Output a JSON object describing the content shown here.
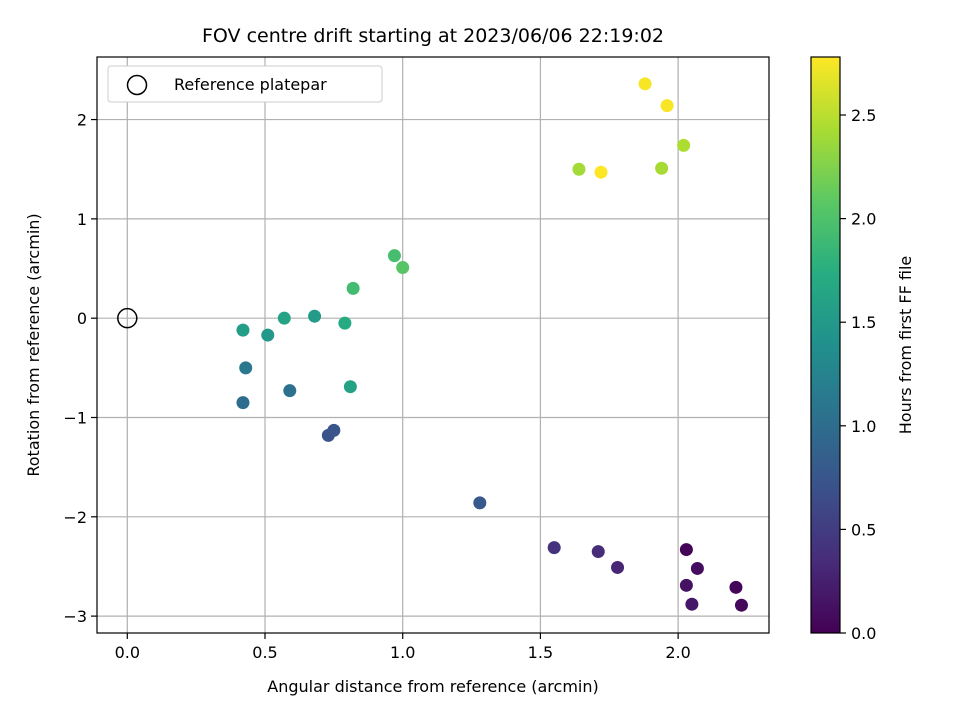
{
  "chart_data": {
    "type": "scatter",
    "title": "FOV centre drift starting at 2023/06/06 22:19:02",
    "xlabel": "Angular distance from reference (arcmin)",
    "ylabel": "Rotation from reference (arcmin)",
    "xlim": [
      -0.11,
      2.33
    ],
    "ylim": [
      -3.17,
      2.63
    ],
    "xticks": [
      0.0,
      0.5,
      1.0,
      1.5,
      2.0
    ],
    "xtick_labels": [
      "0.0",
      "0.5",
      "1.0",
      "1.5",
      "2.0"
    ],
    "yticks": [
      2,
      1,
      0,
      -1,
      -2,
      -3
    ],
    "ytick_labels": [
      "2",
      "1",
      "0",
      "−1",
      "−2",
      "−3"
    ],
    "grid": true,
    "legend": {
      "position": "top-left",
      "entries": [
        {
          "label": "Reference platepar",
          "marker": "open-circle",
          "color": "#000000"
        }
      ]
    },
    "reference_point": {
      "x": 0.0,
      "y": 0.0
    },
    "colorbar": {
      "label": "Hours from first FF file",
      "colormap": "viridis",
      "range": [
        0.0,
        2.78
      ],
      "ticks": [
        0.0,
        0.5,
        1.0,
        1.5,
        2.0,
        2.5
      ],
      "tick_labels": [
        "0.0",
        "0.5",
        "1.0",
        "1.5",
        "2.0",
        "2.5"
      ]
    },
    "points": [
      {
        "x": 2.03,
        "y": -2.33,
        "hours": 0.02
      },
      {
        "x": 2.21,
        "y": -2.71,
        "hours": 0.04
      },
      {
        "x": 2.23,
        "y": -2.89,
        "hours": 0.06
      },
      {
        "x": 2.07,
        "y": -2.52,
        "hours": 0.1
      },
      {
        "x": 2.03,
        "y": -2.69,
        "hours": 0.14
      },
      {
        "x": 2.05,
        "y": -2.88,
        "hours": 0.18
      },
      {
        "x": 1.78,
        "y": -2.51,
        "hours": 0.3
      },
      {
        "x": 1.71,
        "y": -2.35,
        "hours": 0.35
      },
      {
        "x": 1.55,
        "y": -2.31,
        "hours": 0.4
      },
      {
        "x": 1.28,
        "y": -1.86,
        "hours": 0.78
      },
      {
        "x": 0.73,
        "y": -1.18,
        "hours": 0.72
      },
      {
        "x": 0.75,
        "y": -1.13,
        "hours": 0.74
      },
      {
        "x": 0.42,
        "y": -0.85,
        "hours": 1.0
      },
      {
        "x": 0.59,
        "y": -0.73,
        "hours": 1.05
      },
      {
        "x": 0.43,
        "y": -0.5,
        "hours": 1.12
      },
      {
        "x": 0.81,
        "y": -0.69,
        "hours": 1.6
      },
      {
        "x": 0.51,
        "y": -0.17,
        "hours": 1.48
      },
      {
        "x": 0.42,
        "y": -0.12,
        "hours": 1.55
      },
      {
        "x": 0.57,
        "y": 0.0,
        "hours": 1.62
      },
      {
        "x": 0.68,
        "y": 0.02,
        "hours": 1.52
      },
      {
        "x": 0.79,
        "y": -0.05,
        "hours": 1.7
      },
      {
        "x": 0.82,
        "y": 0.3,
        "hours": 1.92
      },
      {
        "x": 0.97,
        "y": 0.63,
        "hours": 1.95
      },
      {
        "x": 1.0,
        "y": 0.51,
        "hours": 2.05
      },
      {
        "x": 1.64,
        "y": 1.5,
        "hours": 2.4
      },
      {
        "x": 1.72,
        "y": 1.47,
        "hours": 2.78
      },
      {
        "x": 1.94,
        "y": 1.51,
        "hours": 2.42
      },
      {
        "x": 2.02,
        "y": 1.74,
        "hours": 2.45
      },
      {
        "x": 1.88,
        "y": 2.36,
        "hours": 2.75
      },
      {
        "x": 1.96,
        "y": 2.14,
        "hours": 2.76
      }
    ]
  }
}
